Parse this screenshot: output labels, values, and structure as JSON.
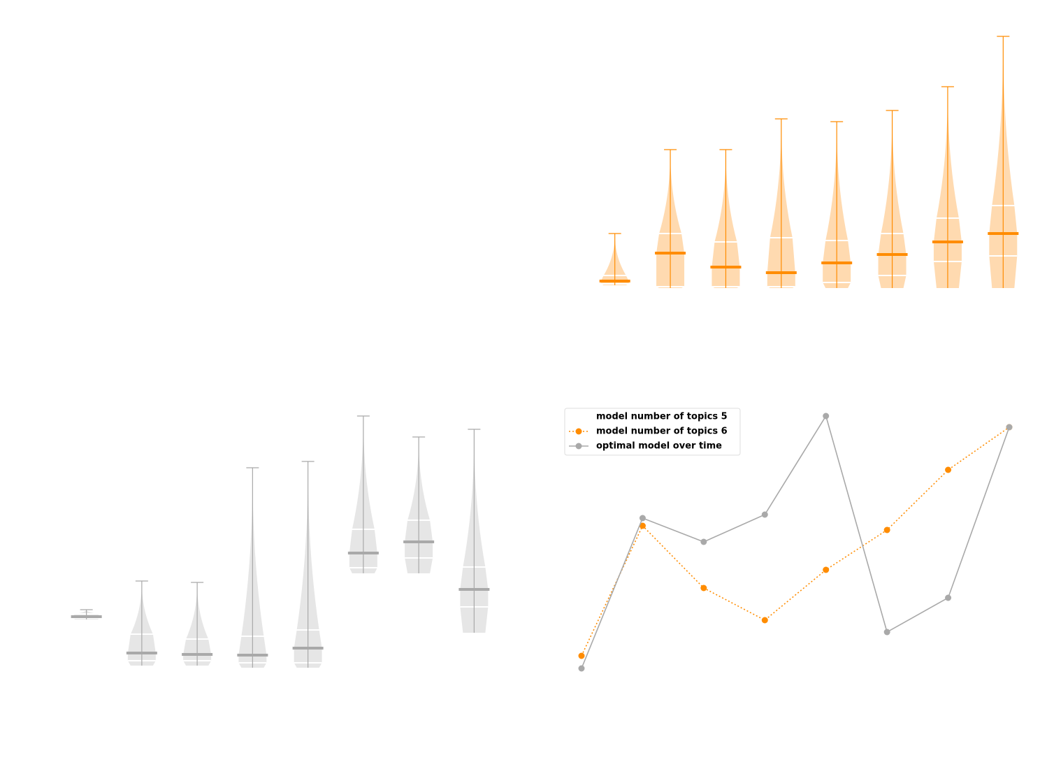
{
  "chart_data": [
    {
      "type": "violin",
      "color": "#ff8c00",
      "fill": "#ffdab0",
      "ylim": [
        0,
        100
      ],
      "series": [
        {
          "stats": [
            {
              "min": 5.5,
              "q1": 6,
              "median": 7,
              "q3": 9,
              "max": 24
            },
            {
              "min": 4.5,
              "q1": 5,
              "median": 17,
              "q3": 24,
              "max": 54
            },
            {
              "min": 4.5,
              "q1": 5,
              "median": 12,
              "q3": 21,
              "max": 54
            },
            {
              "min": 4.5,
              "q1": 5,
              "median": 10,
              "q3": 22.5,
              "max": 65
            },
            {
              "min": 4.5,
              "q1": 6.5,
              "median": 13.5,
              "q3": 21.5,
              "max": 64
            },
            {
              "min": 4.5,
              "q1": 9,
              "median": 16.5,
              "q3": 24,
              "max": 68
            },
            {
              "min": 4.5,
              "q1": 14,
              "median": 21,
              "q3": 29.5,
              "max": 76.5
            },
            {
              "min": 4.5,
              "q1": 16,
              "median": 24,
              "q3": 34,
              "max": 94.5
            }
          ]
        }
      ]
    },
    {
      "type": "violin",
      "color": "#a9a9a9",
      "fill": "#e6e6e6",
      "ylim": [
        0,
        100
      ],
      "series": [
        {
          "stats": [
            {
              "min": 21,
              "q1": 21.5,
              "median": 22,
              "q3": 23,
              "max": 24.5
            },
            {
              "min": 4.5,
              "q1": 6.25,
              "median": 9,
              "q3": 15.75,
              "max": 34.75
            },
            {
              "min": 4.5,
              "q1": 6.25,
              "median": 8.5,
              "q3": 14,
              "max": 34.25
            },
            {
              "min": 3.75,
              "q1": 5.5,
              "median": 8.25,
              "q3": 15,
              "max": 75.25
            },
            {
              "min": 3.75,
              "q1": 5.5,
              "median": 10.75,
              "q3": 17.25,
              "max": 77.5
            },
            {
              "min": 37.5,
              "q1": 39.5,
              "median": 44.75,
              "q3": 53.25,
              "max": 93.75
            },
            {
              "min": 37.5,
              "q1": 43,
              "median": 48.75,
              "q3": 56.5,
              "max": 86.25
            },
            {
              "min": 16.25,
              "q1": 25.5,
              "median": 31.75,
              "q3": 39.75,
              "max": 89
            }
          ]
        }
      ]
    },
    {
      "type": "line",
      "ylim": [
        0,
        100
      ],
      "legend": "upper left",
      "series": [
        {
          "name": "model number of topics 5",
          "color": "none",
          "values": []
        },
        {
          "name": "model number of topics 6",
          "color": "#ff8c00",
          "linestyle": "dotted",
          "values": [
            8,
            54.5,
            32.25,
            20.75,
            38.75,
            53,
            74.5,
            89.75
          ]
        },
        {
          "name": "optimal model over time",
          "color": "#a9a9a9",
          "linestyle": "solid",
          "values": [
            3.5,
            57.25,
            48.75,
            58.5,
            93.75,
            16.5,
            28.75,
            89.75
          ]
        }
      ]
    }
  ]
}
